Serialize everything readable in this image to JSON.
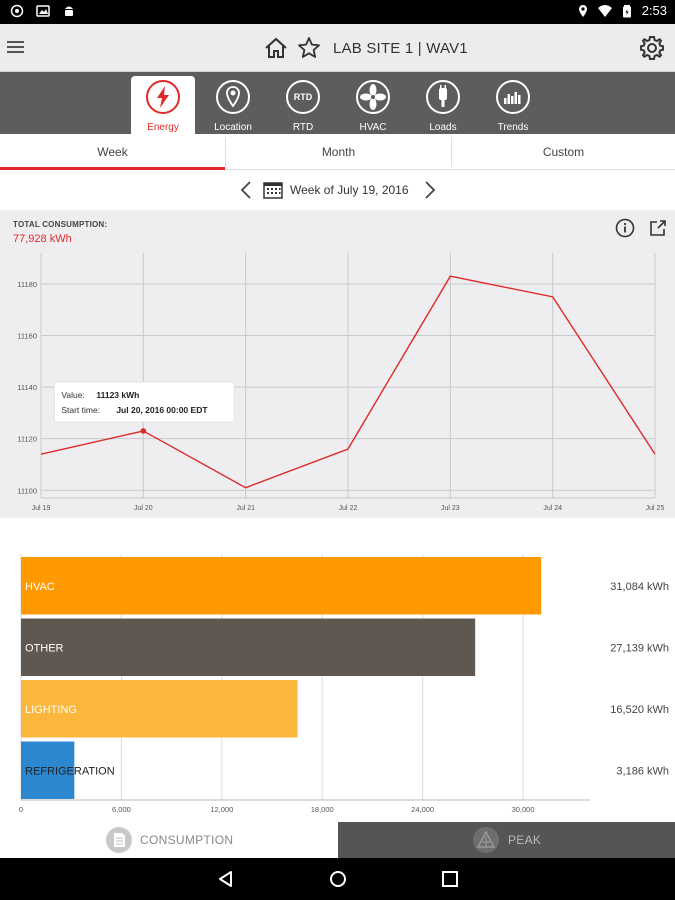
{
  "status_bar": {
    "time": "2:53"
  },
  "app_bar": {
    "title": "LAB SITE 1 | WAV1"
  },
  "tabs": [
    {
      "label": "Energy",
      "icon": "lightning-icon",
      "active": true
    },
    {
      "label": "Location",
      "icon": "location-pin-icon",
      "active": false
    },
    {
      "label": "RTD",
      "icon": "rtd-icon",
      "active": false
    },
    {
      "label": "HVAC",
      "icon": "fan-icon",
      "active": false
    },
    {
      "label": "Loads",
      "icon": "plug-icon",
      "active": false
    },
    {
      "label": "Trends",
      "icon": "trends-icon",
      "active": false
    }
  ],
  "period_tabs": [
    {
      "label": "Week",
      "active": true
    },
    {
      "label": "Month",
      "active": false
    },
    {
      "label": "Custom",
      "active": false
    }
  ],
  "week_nav": {
    "label": "Week of July 19, 2016"
  },
  "summary": {
    "label": "TOTAL CONSUMPTION:",
    "value": "77,928 kWh"
  },
  "tooltip": {
    "value_label": "Value:",
    "value": "11123 kWh",
    "start_label": "Start time:",
    "start": "Jul 20, 2016 00:00 EDT"
  },
  "chart_data": [
    {
      "type": "line",
      "x": [
        "Jul 19",
        "Jul 20",
        "Jul 21",
        "Jul 22",
        "Jul 23",
        "Jul 24",
        "Jul 25"
      ],
      "series": [
        {
          "values": [
            11114,
            11123,
            11101,
            11116,
            11183,
            11175,
            11114
          ],
          "color": "#e02a2a"
        }
      ],
      "yticks": [
        11100,
        11120,
        11140,
        11160,
        11180
      ],
      "ylim": [
        11097,
        11192
      ],
      "grid": true,
      "highlight_index": 1
    },
    {
      "type": "bar",
      "orientation": "horizontal",
      "categories": [
        "HVAC",
        "OTHER",
        "LIGHTING",
        "REFRIGERATION"
      ],
      "values": [
        31084,
        27139,
        16520,
        3186
      ],
      "value_labels": [
        "31,084 kWh",
        "27,139 kWh",
        "16,520 kWh",
        "3,186 kWh"
      ],
      "colors": [
        "#ff9900",
        "#5f5850",
        "#fbb73b",
        "#2b87cf"
      ],
      "xticks": [
        "0",
        "6,000",
        "12,000",
        "18,000",
        "24,000",
        "30,000"
      ],
      "xlim": [
        0,
        34000
      ],
      "grid": true
    }
  ],
  "bottom_tabs": {
    "consumption": "CONSUMPTION",
    "peak": "PEAK"
  }
}
